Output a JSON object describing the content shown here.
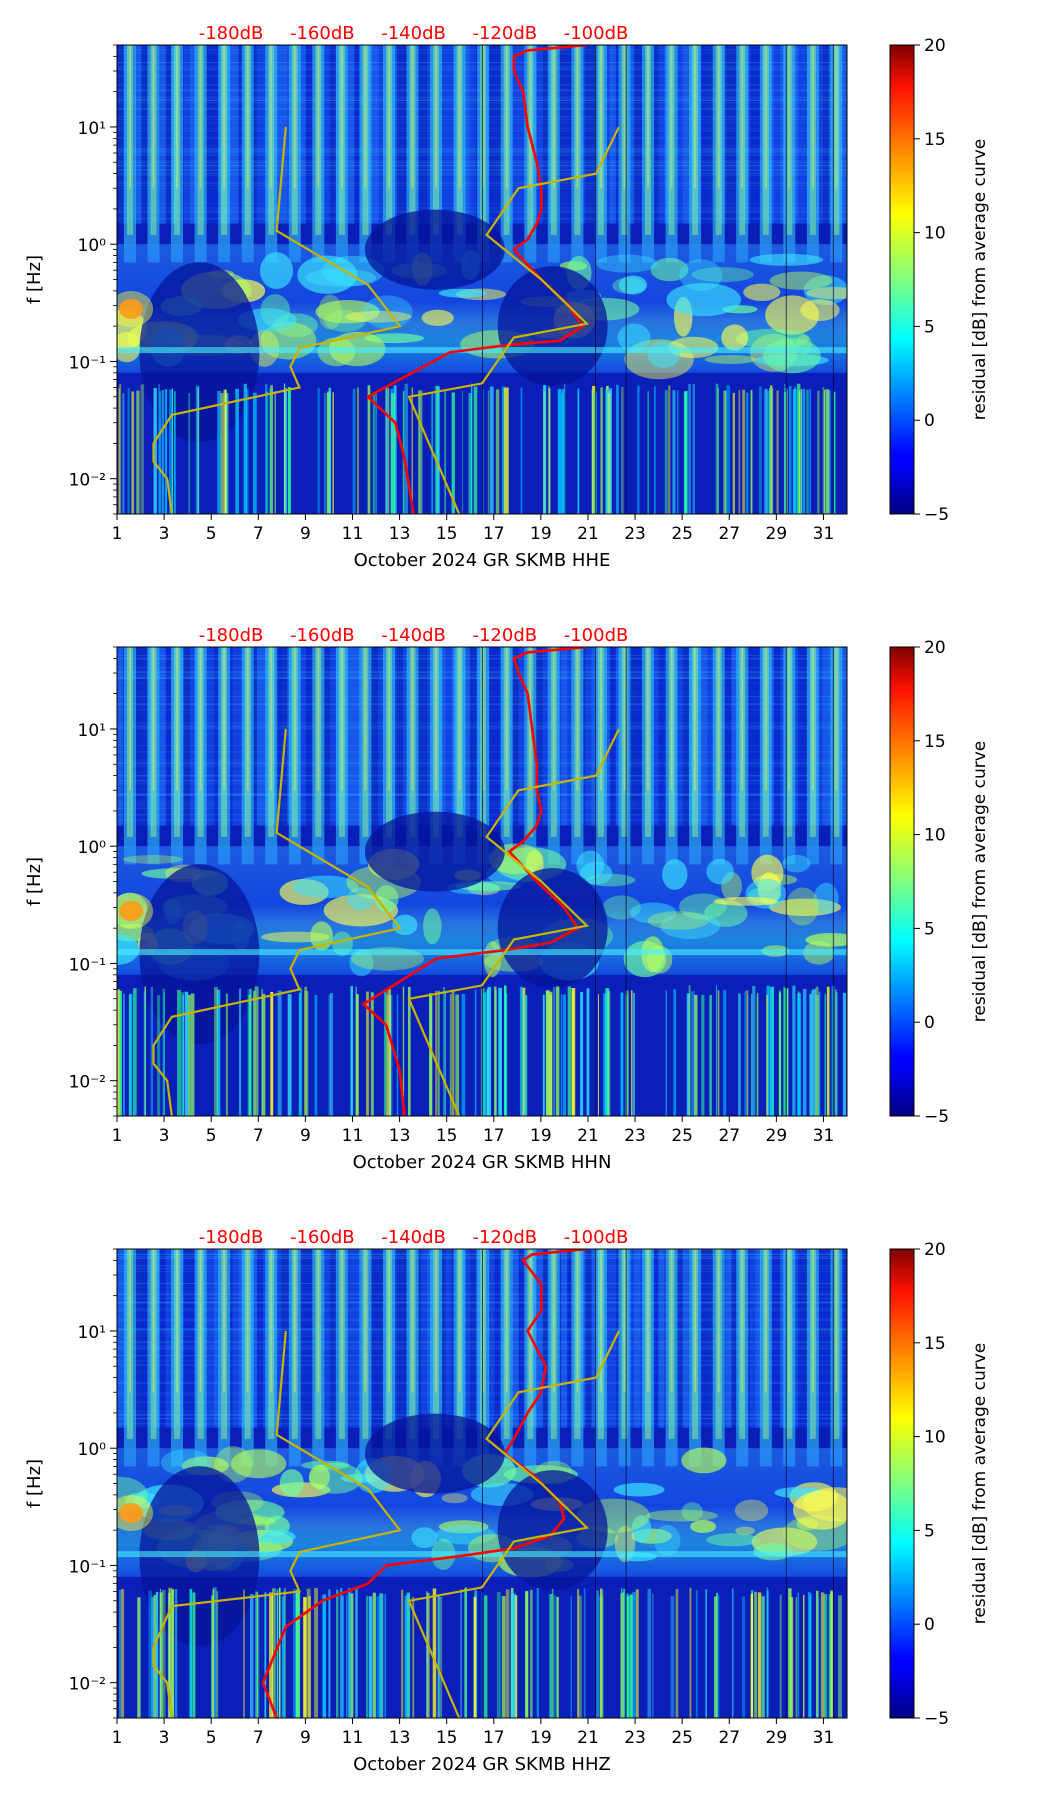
{
  "chart_data": [
    {
      "type": "heatmap",
      "xlabel": "October 2024 GR SKMB  HHE",
      "ylabel": "f [Hz]",
      "x_tick_labels": [
        "1",
        "3",
        "5",
        "7",
        "9",
        "11",
        "13",
        "15",
        "17",
        "19",
        "21",
        "23",
        "25",
        "27",
        "29",
        "31"
      ],
      "y_tick_labels": [
        "10⁻²",
        "10⁻¹",
        "10⁰",
        "10¹"
      ],
      "top_axis_labels": [
        "-180dB",
        "-160dB",
        "-140dB",
        "-120dB",
        "-100dB"
      ],
      "colorbar_label": "residual [dB] from average curve",
      "colorbar_ticks": [
        "20",
        "15",
        "10",
        "5",
        "0",
        "−5"
      ],
      "xlim": [
        1,
        32
      ],
      "ylim": [
        0.005,
        50
      ],
      "colorbar_range": [
        -5,
        20
      ],
      "yscale": "log",
      "colormap": "jet",
      "top_axis_color": "#ff0000",
      "series": [
        {
          "color": "#ff0000",
          "points": [
            [
              -102,
              50
            ],
            [
              -115,
              45
            ],
            [
              -118,
              40
            ],
            [
              -118,
              30
            ],
            [
              -116,
              20
            ],
            [
              -115,
              10
            ],
            [
              -113,
              5
            ],
            [
              -112,
              3
            ],
            [
              -112,
              2
            ],
            [
              -113,
              1.5
            ],
            [
              -115,
              1.1
            ],
            [
              -118,
              0.9
            ],
            [
              -112,
              0.5
            ],
            [
              -106,
              0.3
            ],
            [
              -103,
              0.2
            ],
            [
              -108,
              0.15
            ],
            [
              -118,
              0.14
            ],
            [
              -132,
              0.12
            ],
            [
              -150,
              0.05
            ],
            [
              -144,
              0.03
            ],
            [
              -142,
              0.015
            ],
            [
              -140,
              0.005
            ]
          ]
        },
        {
          "color": "#c8b400",
          "points": [
            [
              -168,
              10
            ],
            [
              -170,
              1.3
            ],
            [
              -150,
              0.45
            ],
            [
              -143,
              0.2
            ],
            [
              -165,
              0.13
            ],
            [
              -167,
              0.09
            ],
            [
              -165,
              0.06
            ],
            [
              -193,
              0.035
            ],
            [
              -197,
              0.02
            ],
            [
              -197,
              0.014
            ],
            [
              -194,
              0.01
            ],
            [
              -193,
              0.005
            ]
          ]
        },
        {
          "color": "#c8b400",
          "points": [
            [
              -95,
              10
            ],
            [
              -100,
              4
            ],
            [
              -117,
              3
            ],
            [
              -124,
              1.2
            ],
            [
              -112,
              0.5
            ],
            [
              -102,
              0.21
            ],
            [
              -118,
              0.16
            ],
            [
              -125,
              0.065
            ],
            [
              -141,
              0.05
            ],
            [
              -130,
              0.005
            ]
          ]
        }
      ]
    },
    {
      "type": "heatmap",
      "xlabel": "October 2024 GR SKMB  HHN",
      "ylabel": "f [Hz]",
      "x_tick_labels": [
        "1",
        "3",
        "5",
        "7",
        "9",
        "11",
        "13",
        "15",
        "17",
        "19",
        "21",
        "23",
        "25",
        "27",
        "29",
        "31"
      ],
      "y_tick_labels": [
        "10⁻²",
        "10⁻¹",
        "10⁰",
        "10¹"
      ],
      "top_axis_labels": [
        "-180dB",
        "-160dB",
        "-140dB",
        "-120dB",
        "-100dB"
      ],
      "colorbar_label": "residual [dB] from average curve",
      "colorbar_ticks": [
        "20",
        "15",
        "10",
        "5",
        "0",
        "−5"
      ],
      "xlim": [
        1,
        32
      ],
      "ylim": [
        0.005,
        50
      ],
      "colorbar_range": [
        -5,
        20
      ],
      "yscale": "log",
      "colormap": "jet",
      "top_axis_color": "#ff0000",
      "series": [
        {
          "color": "#ff0000",
          "points": [
            [
              -102,
              50
            ],
            [
              -115,
              45
            ],
            [
              -118,
              40
            ],
            [
              -117,
              30
            ],
            [
              -115,
              20
            ],
            [
              -114,
              10
            ],
            [
              -113,
              5
            ],
            [
              -113,
              3
            ],
            [
              -112,
              2
            ],
            [
              -113,
              1.5
            ],
            [
              -116,
              1.1
            ],
            [
              -119,
              0.9
            ],
            [
              -113,
              0.5
            ],
            [
              -107,
              0.3
            ],
            [
              -104,
              0.2
            ],
            [
              -110,
              0.15
            ],
            [
              -120,
              0.13
            ],
            [
              -135,
              0.11
            ],
            [
              -151,
              0.045
            ],
            [
              -146,
              0.03
            ],
            [
              -143,
              0.012
            ],
            [
              -142,
              0.005
            ]
          ]
        },
        {
          "color": "#c8b400",
          "points": [
            [
              -168,
              10
            ],
            [
              -170,
              1.3
            ],
            [
              -150,
              0.45
            ],
            [
              -143,
              0.2
            ],
            [
              -165,
              0.13
            ],
            [
              -167,
              0.09
            ],
            [
              -165,
              0.06
            ],
            [
              -193,
              0.035
            ],
            [
              -197,
              0.02
            ],
            [
              -197,
              0.014
            ],
            [
              -194,
              0.01
            ],
            [
              -193,
              0.005
            ]
          ]
        },
        {
          "color": "#c8b400",
          "points": [
            [
              -95,
              10
            ],
            [
              -100,
              4
            ],
            [
              -117,
              3
            ],
            [
              -124,
              1.2
            ],
            [
              -112,
              0.5
            ],
            [
              -102,
              0.21
            ],
            [
              -118,
              0.16
            ],
            [
              -125,
              0.065
            ],
            [
              -141,
              0.05
            ],
            [
              -130,
              0.005
            ]
          ]
        }
      ]
    },
    {
      "type": "heatmap",
      "xlabel": "October 2024 GR SKMB  HHZ",
      "ylabel": "f [Hz]",
      "x_tick_labels": [
        "1",
        "3",
        "5",
        "7",
        "9",
        "11",
        "13",
        "15",
        "17",
        "19",
        "21",
        "23",
        "25",
        "27",
        "29",
        "31"
      ],
      "y_tick_labels": [
        "10⁻²",
        "10⁻¹",
        "10⁰",
        "10¹"
      ],
      "top_axis_labels": [
        "-180dB",
        "-160dB",
        "-140dB",
        "-120dB",
        "-100dB"
      ],
      "colorbar_label": "residual [dB] from average curve",
      "colorbar_ticks": [
        "20",
        "15",
        "10",
        "5",
        "0",
        "−5"
      ],
      "xlim": [
        1,
        32
      ],
      "ylim": [
        0.005,
        50
      ],
      "colorbar_range": [
        -5,
        20
      ],
      "yscale": "log",
      "colormap": "jet",
      "top_axis_color": "#ff0000",
      "series": [
        {
          "color": "#ff0000",
          "points": [
            [
              -102,
              50
            ],
            [
              -114,
              45
            ],
            [
              -116,
              40
            ],
            [
              -112,
              25
            ],
            [
              -112,
              15
            ],
            [
              -115,
              10
            ],
            [
              -111,
              5
            ],
            [
              -112,
              3
            ],
            [
              -115,
              2
            ],
            [
              -118,
              1.2
            ],
            [
              -120,
              0.9
            ],
            [
              -114,
              0.6
            ],
            [
              -108,
              0.35
            ],
            [
              -107,
              0.25
            ],
            [
              -110,
              0.18
            ],
            [
              -118,
              0.14
            ],
            [
              -130,
              0.12
            ],
            [
              -146,
              0.1
            ],
            [
              -150,
              0.07
            ],
            [
              -160,
              0.05
            ],
            [
              -168,
              0.03
            ],
            [
              -173,
              0.01
            ],
            [
              -170,
              0.005
            ]
          ]
        },
        {
          "color": "#c8b400",
          "points": [
            [
              -168,
              10
            ],
            [
              -170,
              1.3
            ],
            [
              -150,
              0.45
            ],
            [
              -143,
              0.2
            ],
            [
              -165,
              0.13
            ],
            [
              -167,
              0.09
            ],
            [
              -165,
              0.06
            ],
            [
              -193,
              0.045
            ],
            [
              -197,
              0.02
            ],
            [
              -197,
              0.014
            ],
            [
              -194,
              0.01
            ],
            [
              -193,
              0.005
            ]
          ]
        },
        {
          "color": "#c8b400",
          "points": [
            [
              -95,
              10
            ],
            [
              -100,
              4
            ],
            [
              -117,
              3
            ],
            [
              -124,
              1.2
            ],
            [
              -112,
              0.5
            ],
            [
              -102,
              0.21
            ],
            [
              -118,
              0.16
            ],
            [
              -125,
              0.065
            ],
            [
              -141,
              0.05
            ],
            [
              -130,
              0.005
            ]
          ]
        }
      ]
    }
  ]
}
